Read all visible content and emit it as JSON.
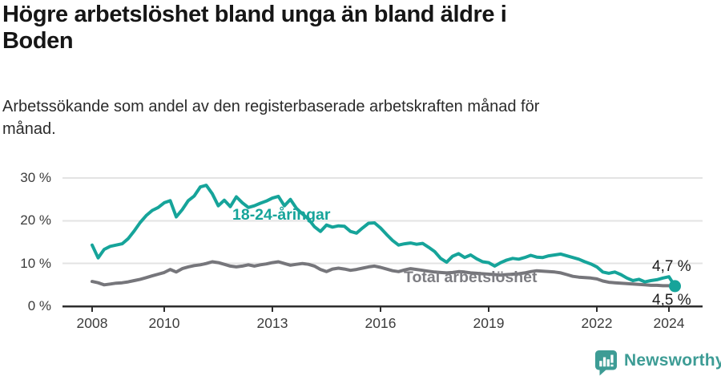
{
  "header": {
    "title_lines": [
      "Högre arbetslöshet bland unga än bland äldre i",
      "Boden"
    ],
    "subtitle_lines": [
      "Arbetssökande som andel av den registerbaserade arbetskraften månad för",
      "månad."
    ]
  },
  "chart_data": {
    "type": "line",
    "title": "Högre arbetslöshet bland unga än bland äldre i Boden",
    "subtitle": "Arbetssökande som andel av den registerbaserade arbetskraften månad för månad.",
    "unit": "%",
    "grid": "horizontal",
    "legend_position": "inline-labels-on-lines",
    "x_start": 2008,
    "x_step_years": 0.166667,
    "x_end": 2024.17,
    "xlim": [
      2007.2,
      2025
    ],
    "ylim": [
      0,
      30
    ],
    "y_ticks": [
      {
        "value": 0,
        "label": "0 %"
      },
      {
        "value": 10,
        "label": "10 %"
      },
      {
        "value": 20,
        "label": "20 %"
      },
      {
        "value": 30,
        "label": "30 %"
      }
    ],
    "x_ticks": [
      {
        "value": 2008,
        "label": "2008"
      },
      {
        "value": 2010,
        "label": "2010"
      },
      {
        "value": 2013,
        "label": "2013"
      },
      {
        "value": 2016,
        "label": "2016"
      },
      {
        "value": 2019,
        "label": "2019"
      },
      {
        "value": 2022,
        "label": "2022"
      },
      {
        "value": 2024,
        "label": "2024"
      }
    ],
    "series": [
      {
        "name": "18-24-åringar",
        "color": "#16a49a",
        "end_value_label": "4,7 %",
        "end_value": 4.7,
        "end_dot": true,
        "values": [
          14.3,
          11.3,
          13.3,
          14.0,
          14.3,
          14.6,
          15.8,
          17.6,
          19.6,
          21.2,
          22.4,
          23.1,
          24.2,
          24.7,
          20.9,
          22.6,
          24.7,
          25.8,
          27.9,
          28.3,
          26.3,
          23.5,
          24.8,
          23.3,
          25.6,
          24.2,
          23.1,
          23.5,
          24.1,
          24.6,
          25.3,
          25.7,
          23.5,
          25.0,
          22.9,
          21.6,
          20.4,
          18.6,
          17.5,
          19.0,
          18.5,
          18.8,
          18.7,
          17.5,
          17.1,
          18.3,
          19.4,
          19.5,
          18.3,
          16.8,
          15.4,
          14.3,
          14.6,
          14.8,
          14.5,
          14.7,
          13.8,
          12.8,
          11.2,
          10.3,
          11.7,
          12.3,
          11.4,
          12.0,
          11.1,
          10.4,
          10.2,
          9.4,
          10.2,
          10.8,
          11.2,
          11.0,
          11.4,
          11.9,
          11.5,
          11.4,
          11.8,
          12.0,
          12.2,
          11.8,
          11.4,
          11.0,
          10.4,
          9.9,
          9.2,
          8.0,
          7.7,
          8.0,
          7.4,
          6.6,
          6.0,
          6.3,
          5.7,
          6.0,
          6.2,
          6.6,
          6.9,
          4.7
        ]
      },
      {
        "name": "Total arbetslöshet",
        "color": "#76767b",
        "end_value_label": "4,5 %",
        "end_value": 4.5,
        "end_dot": false,
        "values": [
          5.8,
          5.5,
          5.0,
          5.2,
          5.4,
          5.5,
          5.7,
          6.0,
          6.3,
          6.7,
          7.1,
          7.5,
          7.9,
          8.6,
          8.0,
          8.8,
          9.2,
          9.5,
          9.7,
          10.0,
          10.4,
          10.2,
          9.8,
          9.4,
          9.2,
          9.4,
          9.7,
          9.4,
          9.7,
          9.9,
          10.2,
          10.4,
          10.0,
          9.6,
          9.8,
          10.0,
          9.8,
          9.4,
          8.6,
          8.1,
          8.7,
          8.9,
          8.7,
          8.4,
          8.6,
          8.9,
          9.2,
          9.4,
          9.1,
          8.7,
          8.3,
          8.1,
          8.5,
          8.8,
          8.6,
          8.4,
          8.2,
          8.0,
          7.9,
          7.8,
          7.9,
          8.1,
          8.0,
          7.8,
          7.7,
          7.6,
          7.5,
          7.4,
          7.3,
          7.4,
          7.5,
          7.6,
          7.8,
          8.1,
          8.3,
          8.2,
          8.1,
          8.0,
          7.8,
          7.4,
          7.0,
          6.8,
          6.7,
          6.6,
          6.4,
          5.9,
          5.6,
          5.5,
          5.4,
          5.3,
          5.2,
          5.1,
          5.0,
          4.9,
          4.9,
          4.8,
          4.8,
          4.5
        ]
      }
    ],
    "colors": {
      "young_line": "#16a49a",
      "total_line": "#76767b",
      "gridline": "#e3e3e3",
      "axis": "#2e2e2e",
      "end_label_text": "#1c1c1c"
    }
  },
  "footer": {
    "brand": "Newsworthy",
    "brand_color": "#3d9c95",
    "logo_icon": "bar-chart-speech-bubble-icon"
  }
}
